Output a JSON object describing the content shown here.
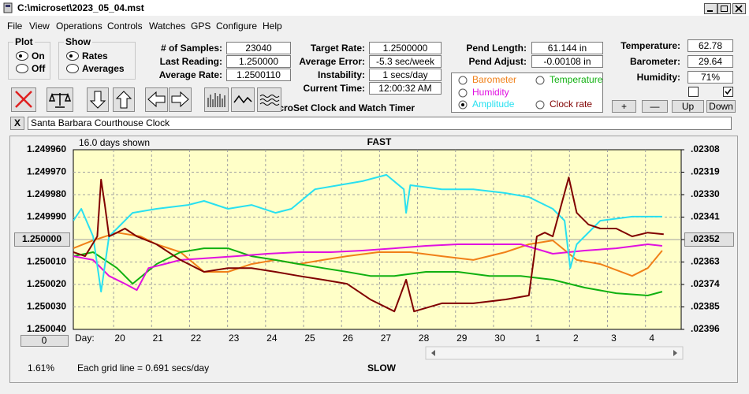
{
  "window": {
    "title": "C:\\microset\\2023_05_04.mst"
  },
  "menu": [
    "File",
    "View",
    "Operations",
    "Controls",
    "Watches",
    "GPS",
    "Configure",
    "Help"
  ],
  "plot_group": {
    "title": "Plot",
    "options": [
      "On",
      "Off"
    ],
    "selected": 0
  },
  "show_group": {
    "title": "Show",
    "options": [
      "Rates",
      "Averages"
    ],
    "selected": 0
  },
  "stats": [
    {
      "label": "# of Samples:",
      "value": "23040"
    },
    {
      "label": "Last Reading:",
      "value": "1.250000"
    },
    {
      "label": "Average Rate:",
      "value": "1.2500110"
    }
  ],
  "timing": [
    {
      "label": "Target Rate:",
      "value": "1.2500000"
    },
    {
      "label": "Average Error:",
      "value": "-5.3 sec/week"
    },
    {
      "label": "Instability:",
      "value": "1 secs/day"
    },
    {
      "label": "Current Time:",
      "value": "12:00:32 AM"
    }
  ],
  "app_name": "MicroSet Clock and Watch Timer",
  "pendulum": [
    {
      "label": "Pend Length:",
      "value": "61.144 in"
    },
    {
      "label": "Pend Adjust:",
      "value": "-0.00108 in"
    }
  ],
  "environment": [
    {
      "label": "Temperature:",
      "value": "62.78"
    },
    {
      "label": "Barometer:",
      "value": "29.64"
    },
    {
      "label": "Humidity:",
      "value": "71%"
    }
  ],
  "buttons": [
    "+",
    "—",
    "Up",
    "Down"
  ],
  "close_button": "X",
  "clock_name": "Santa Barbara Courthouse Clock",
  "chart_data": {
    "type": "line",
    "days_shown": "16.0 days shown",
    "top_label": "FAST",
    "bottom_label": "SLOW",
    "x_label": "Day:",
    "grid_note": "Each grid line = 0.691 secs/day",
    "offset_button": "0",
    "percent": "1.61%",
    "xlim": [
      18.94,
      34.94
    ],
    "xticks": [
      20,
      21,
      22,
      23,
      24,
      25,
      26,
      27,
      28,
      29,
      30,
      {
        "value": 31,
        "label": "1"
      },
      {
        "value": 32,
        "label": "2"
      },
      {
        "value": 33,
        "label": "3"
      },
      {
        "value": 34,
        "label": "4"
      }
    ],
    "ylim": [
      1.25004,
      1.24996
    ],
    "yticks": [
      {
        "value": 1.24996,
        "label": "1.249960"
      },
      {
        "value": 1.24997,
        "label": "1.249970"
      },
      {
        "value": 1.24998,
        "label": "1.249980"
      },
      {
        "value": 1.24999,
        "label": "1.249990"
      },
      {
        "value": 1.25,
        "label": "1.250000"
      },
      {
        "value": 1.25001,
        "label": "1.250010"
      },
      {
        "value": 1.25002,
        "label": "1.250020"
      },
      {
        "value": 1.25003,
        "label": "1.250030"
      },
      {
        "value": 1.25004,
        "label": "1.250040"
      }
    ],
    "y2lim": [
      0.02396,
      0.02308
    ],
    "y2ticks": [
      {
        "value": 0.02308,
        "label": ".02308"
      },
      {
        "value": 0.02319,
        "label": ".02319"
      },
      {
        "value": 0.0233,
        "label": ".02330"
      },
      {
        "value": 0.02341,
        "label": ".02341"
      },
      {
        "value": 0.02352,
        "label": ".02352"
      },
      {
        "value": 0.02363,
        "label": ".02363"
      },
      {
        "value": 0.02374,
        "label": ".02374"
      },
      {
        "value": 0.02385,
        "label": ".02385"
      },
      {
        "value": 0.02396,
        "label": ".02396"
      }
    ],
    "grid": true,
    "selected_series": 3,
    "series": [
      {
        "name": "Barometer",
        "color": "#f08018",
        "x": [
          18.94,
          19.46,
          20.09,
          20.71,
          21.13,
          21.76,
          22.38,
          23.01,
          23.63,
          24.26,
          24.88,
          25.51,
          26.14,
          26.97,
          27.81,
          28.64,
          29.47,
          30.31,
          30.93,
          31.56,
          32.19,
          32.81,
          33.65,
          34.06,
          34.44
        ],
        "values": [
          1.2500039,
          1.2500004,
          1.2499969,
          1.2499986,
          1.2500021,
          1.2500056,
          1.2500144,
          1.2500144,
          1.2500109,
          1.2500091,
          1.2500109,
          1.2500091,
          1.2500074,
          1.2500056,
          1.2500056,
          1.2500074,
          1.2500091,
          1.2500056,
          1.2500021,
          1.2500004,
          1.2500091,
          1.2500109,
          1.2500162,
          1.2500127,
          1.2500049
        ]
      },
      {
        "name": "Temperature",
        "color": "#10b010",
        "x": [
          18.94,
          19.46,
          20.09,
          20.5,
          21.13,
          21.76,
          22.38,
          23.01,
          23.63,
          24.26,
          24.88,
          25.51,
          26.14,
          26.76,
          27.39,
          28.22,
          29.06,
          29.89,
          30.72,
          31.56,
          32.4,
          33.23,
          34.06,
          34.44
        ],
        "values": [
          1.2500074,
          1.2500056,
          1.2500127,
          1.2500197,
          1.2500109,
          1.2500056,
          1.2500039,
          1.2500039,
          1.2500074,
          1.2500091,
          1.2500109,
          1.2500127,
          1.2500144,
          1.2500162,
          1.2500162,
          1.2500144,
          1.2500144,
          1.2500162,
          1.2500162,
          1.2500179,
          1.2500214,
          1.2500239,
          1.2500249,
          1.2500232
        ]
      },
      {
        "name": "Humidity",
        "color": "#e010e0",
        "x": [
          18.94,
          19.46,
          19.88,
          20.3,
          20.61,
          20.92,
          21.34,
          21.76,
          22.38,
          23.22,
          24.05,
          24.88,
          25.72,
          26.55,
          27.39,
          28.22,
          29.06,
          29.89,
          30.72,
          31.56,
          32.4,
          33.23,
          34.06,
          34.44
        ],
        "values": [
          1.2500074,
          1.2500091,
          1.2500162,
          1.2500197,
          1.2500225,
          1.2500127,
          1.2500109,
          1.2500091,
          1.2500084,
          1.2500074,
          1.2500063,
          1.2500056,
          1.2500056,
          1.2500049,
          1.2500039,
          1.2500028,
          1.2500021,
          1.2500021,
          1.2500021,
          1.2500063,
          1.2500049,
          1.2500039,
          1.2500021,
          1.2500028
        ]
      },
      {
        "name": "Amplitude",
        "color": "#28e0f0",
        "x": [
          18.94,
          19.15,
          19.46,
          19.67,
          19.88,
          20.09,
          20.5,
          21.13,
          21.96,
          22.38,
          23.01,
          23.63,
          24.26,
          24.68,
          25.3,
          25.93,
          26.55,
          27.18,
          27.64,
          27.7,
          27.81,
          28.64,
          29.47,
          30.31,
          30.93,
          31.56,
          31.87,
          32.02,
          32.19,
          32.81,
          33.65,
          34.44
        ],
        "values": [
          1.2499916,
          1.2499863,
          1.2499986,
          1.2500232,
          1.2499986,
          1.2499951,
          1.2499881,
          1.2499863,
          1.2499846,
          1.2499828,
          1.2499863,
          1.2499846,
          1.2499881,
          1.2499863,
          1.2499776,
          1.2499758,
          1.249974,
          1.2499712,
          1.2499776,
          1.2499881,
          1.2499758,
          1.2499776,
          1.2499776,
          1.2499793,
          1.2499811,
          1.2499863,
          1.2499916,
          1.2500127,
          1.2500021,
          1.2499916,
          1.2499898,
          1.2499898
        ]
      },
      {
        "name": "Clock rate",
        "color": "#800000",
        "x": [
          18.94,
          19.25,
          19.57,
          19.67,
          19.77,
          19.88,
          20.09,
          20.3,
          20.61,
          21.13,
          21.76,
          22.38,
          23.01,
          23.63,
          24.26,
          24.88,
          25.51,
          26.14,
          26.76,
          27.39,
          27.7,
          27.91,
          28.64,
          29.47,
          30.31,
          30.93,
          31.14,
          31.35,
          31.56,
          31.98,
          32.19,
          32.5,
          32.81,
          33.23,
          33.65,
          34.06,
          34.48
        ],
        "values": [
          1.2500056,
          1.2500074,
          1.2499986,
          1.2499733,
          1.2499846,
          1.2499986,
          1.2499969,
          1.2499951,
          1.2499986,
          1.2500021,
          1.2500091,
          1.2500144,
          1.2500127,
          1.2500127,
          1.2500144,
          1.2500162,
          1.2500179,
          1.2500197,
          1.2500267,
          1.250032,
          1.2500179,
          1.250032,
          1.2500284,
          1.2500284,
          1.2500267,
          1.2500249,
          1.2499986,
          1.2499969,
          1.2499986,
          1.2499723,
          1.2499881,
          1.2499933,
          1.2499951,
          1.2499951,
          1.2499986,
          1.2499969,
          1.2499976
        ]
      }
    ]
  }
}
